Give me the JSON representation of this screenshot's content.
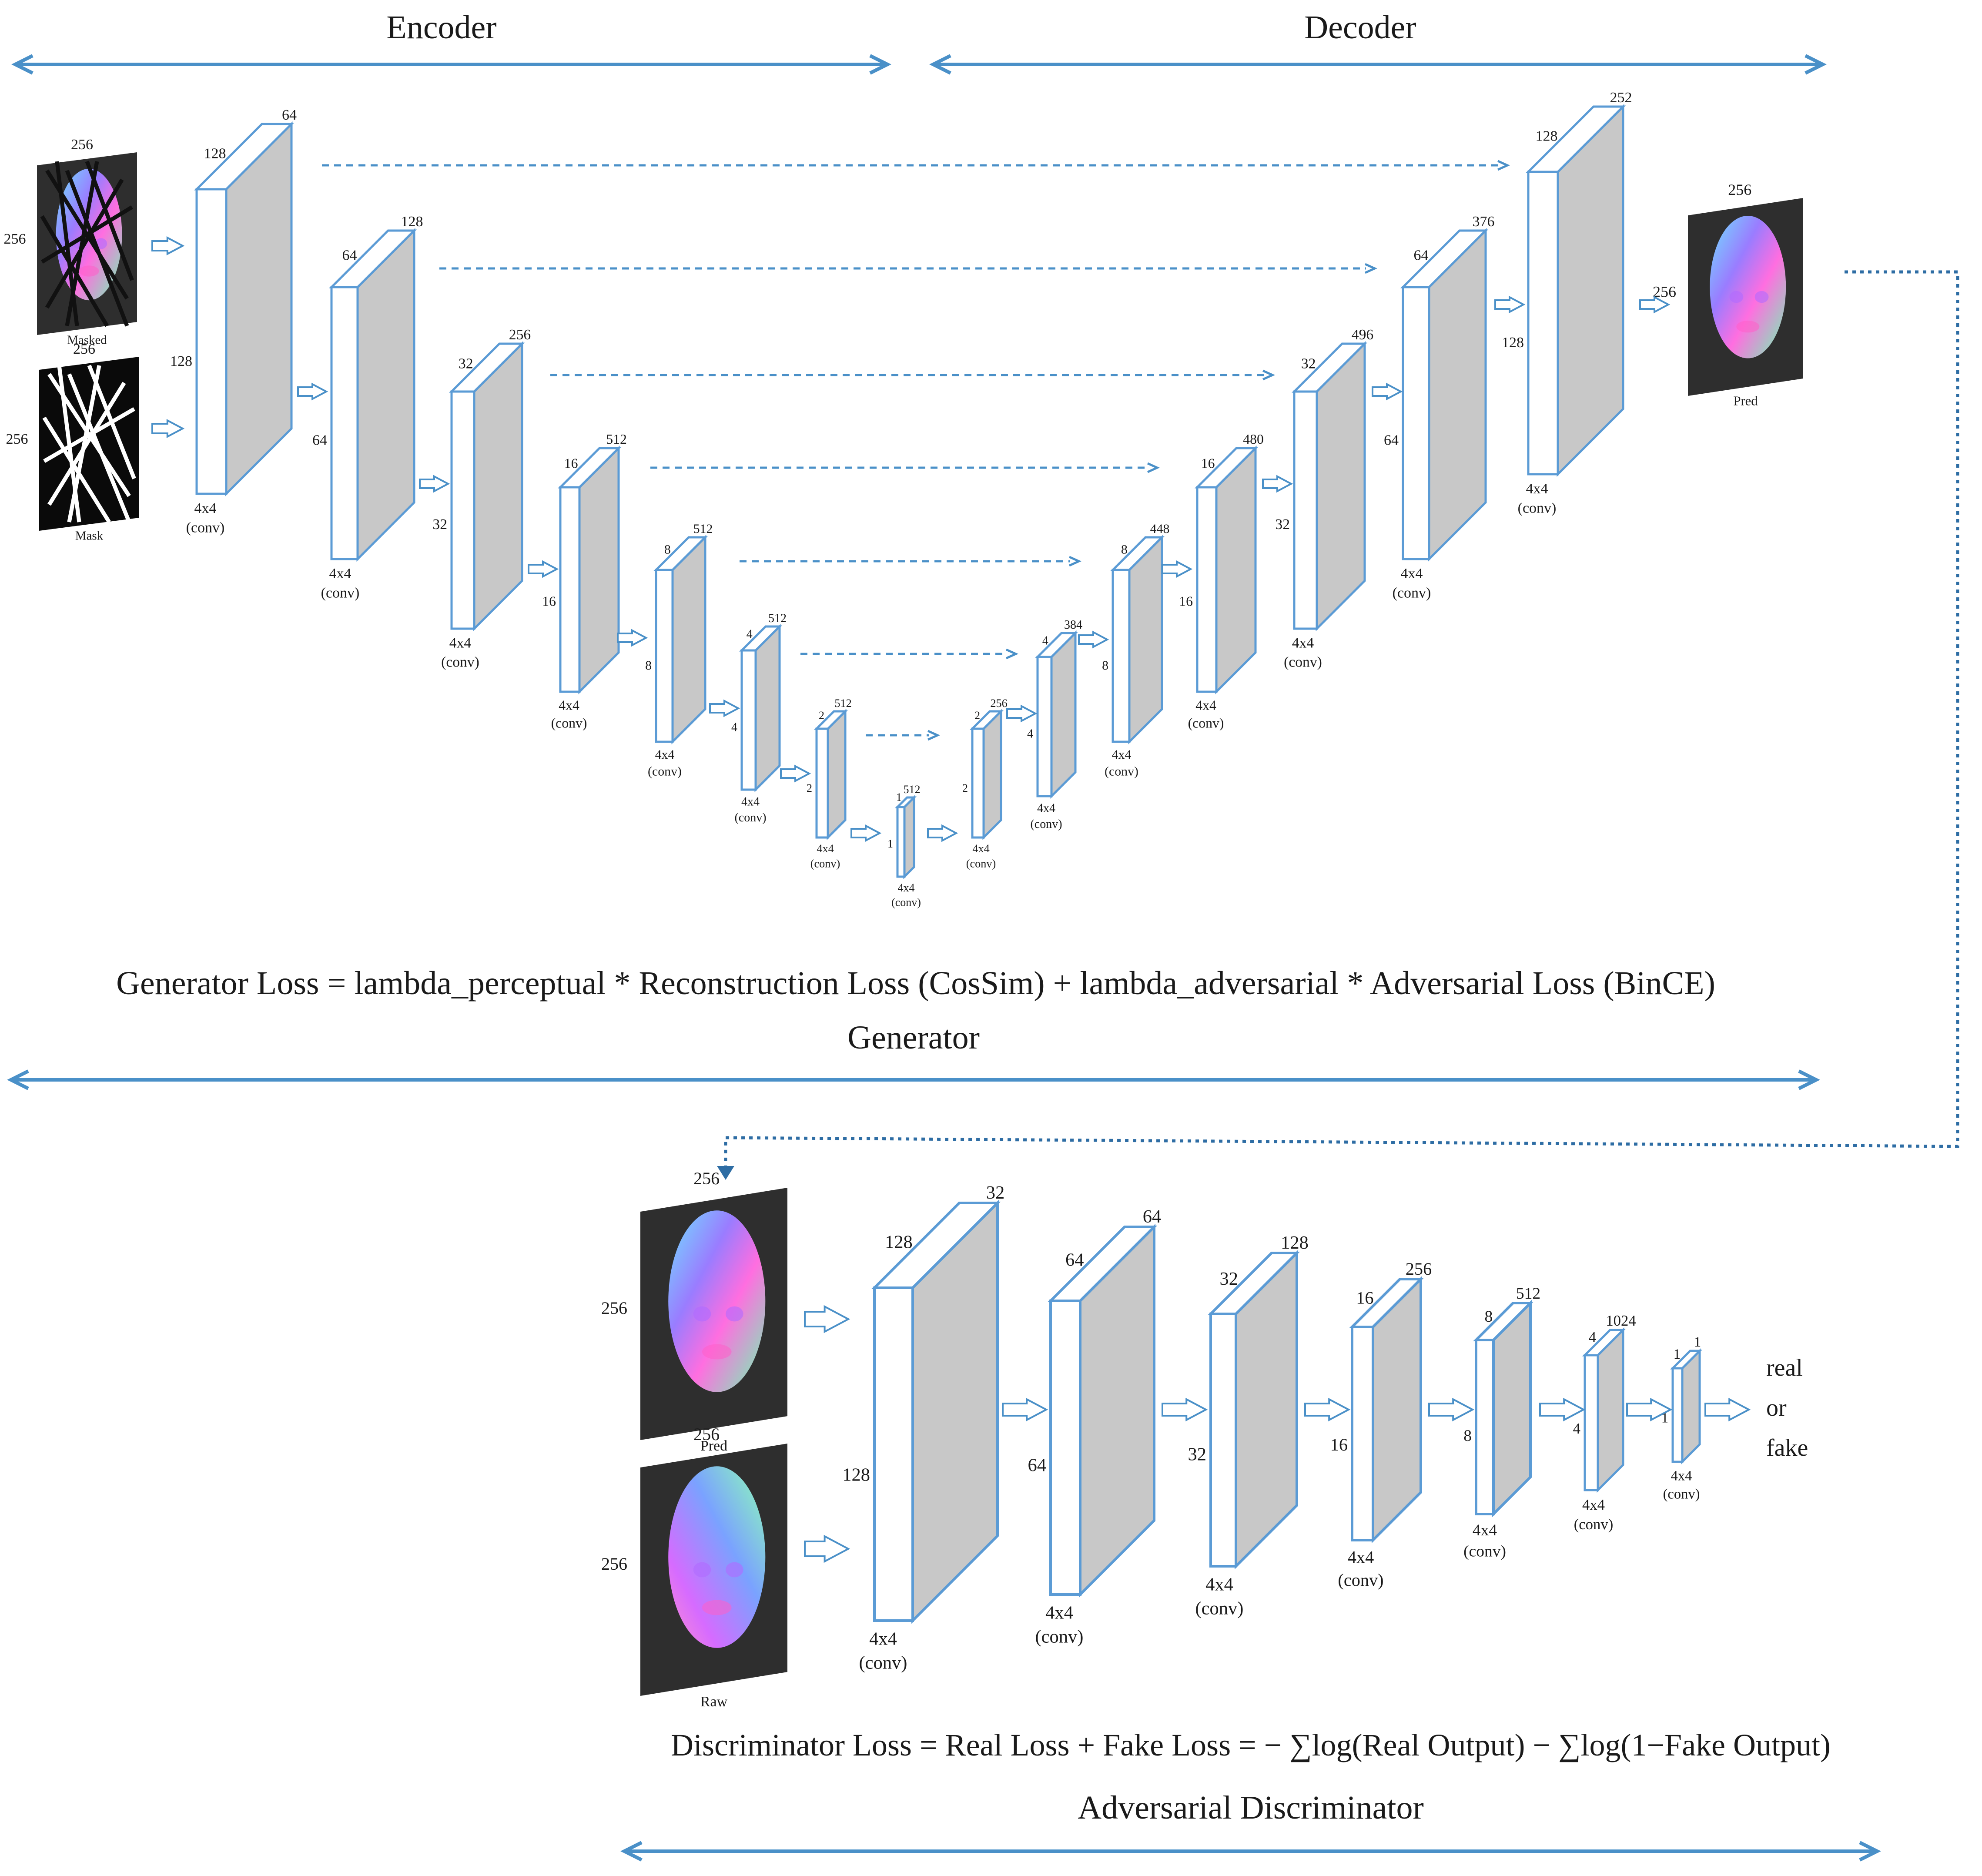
{
  "generator": {
    "encoder_label": "Encoder",
    "decoder_label": "Decoder",
    "section_label": "Generator",
    "loss": "Generator Loss = lambda_perceptual * Reconstruction Loss (CosSim) + lambda_adversarial * Adversarial Loss (BinCE)",
    "inputs": [
      {
        "name": "Masked",
        "width": "256",
        "height": "256"
      },
      {
        "name": "Mask",
        "width": "256",
        "height": "256"
      }
    ],
    "output": {
      "name": "Pred",
      "width": "256",
      "height": "256"
    },
    "conv_label": "4x4",
    "conv_sub": "(conv)",
    "encoder_blocks": [
      {
        "spatial": "128",
        "side": "128",
        "channels": "64"
      },
      {
        "spatial": "64",
        "side": "64",
        "channels": "128"
      },
      {
        "spatial": "32",
        "side": "32",
        "channels": "256"
      },
      {
        "spatial": "16",
        "side": "16",
        "channels": "512"
      },
      {
        "spatial": "8",
        "side": "8",
        "channels": "512"
      },
      {
        "spatial": "4",
        "side": "4",
        "channels": "512"
      },
      {
        "spatial": "2",
        "side": "2",
        "channels": "512"
      },
      {
        "spatial": "1",
        "side": "1",
        "channels": "512"
      }
    ],
    "decoder_blocks": [
      {
        "spatial": "2",
        "side": "2",
        "channels": "256"
      },
      {
        "spatial": "4",
        "side": "4",
        "channels": "384"
      },
      {
        "spatial": "8",
        "side": "8",
        "channels": "448"
      },
      {
        "spatial": "16",
        "side": "16",
        "channels": "480"
      },
      {
        "spatial": "32",
        "side": "32",
        "channels": "496"
      },
      {
        "spatial": "64",
        "side": "64",
        "channels": "376"
      },
      {
        "spatial": "128",
        "side": "128",
        "channels": "252"
      }
    ]
  },
  "discriminator": {
    "section_label": "Adversarial Discriminator",
    "loss": "Discriminator Loss = Real Loss + Fake Loss = − ∑log(Real Output) − ∑log(1−Fake Output)",
    "inputs": [
      {
        "name": "Pred",
        "width": "256",
        "height": "256"
      },
      {
        "name": "Raw",
        "width": "256",
        "height": "256"
      }
    ],
    "conv_label": "4x4",
    "conv_sub": "(conv)",
    "blocks": [
      {
        "spatial": "128",
        "side": "128",
        "channels": "32"
      },
      {
        "spatial": "64",
        "side": "64",
        "channels": "64"
      },
      {
        "spatial": "32",
        "side": "32",
        "channels": "128"
      },
      {
        "spatial": "16",
        "side": "16",
        "channels": "256"
      },
      {
        "spatial": "8",
        "side": "8",
        "channels": "512"
      },
      {
        "spatial": "4",
        "side": "4",
        "channels": "1024"
      },
      {
        "spatial": "1",
        "side": "1",
        "channels": "1"
      }
    ],
    "output_lines": [
      "real",
      "or",
      "fake"
    ]
  },
  "colors": {
    "arrow_blue": "#4a90c8",
    "block_edge": "#5b9bd5",
    "block_face": "#c8c8c8",
    "dotted_blue": "#2e6da4"
  }
}
